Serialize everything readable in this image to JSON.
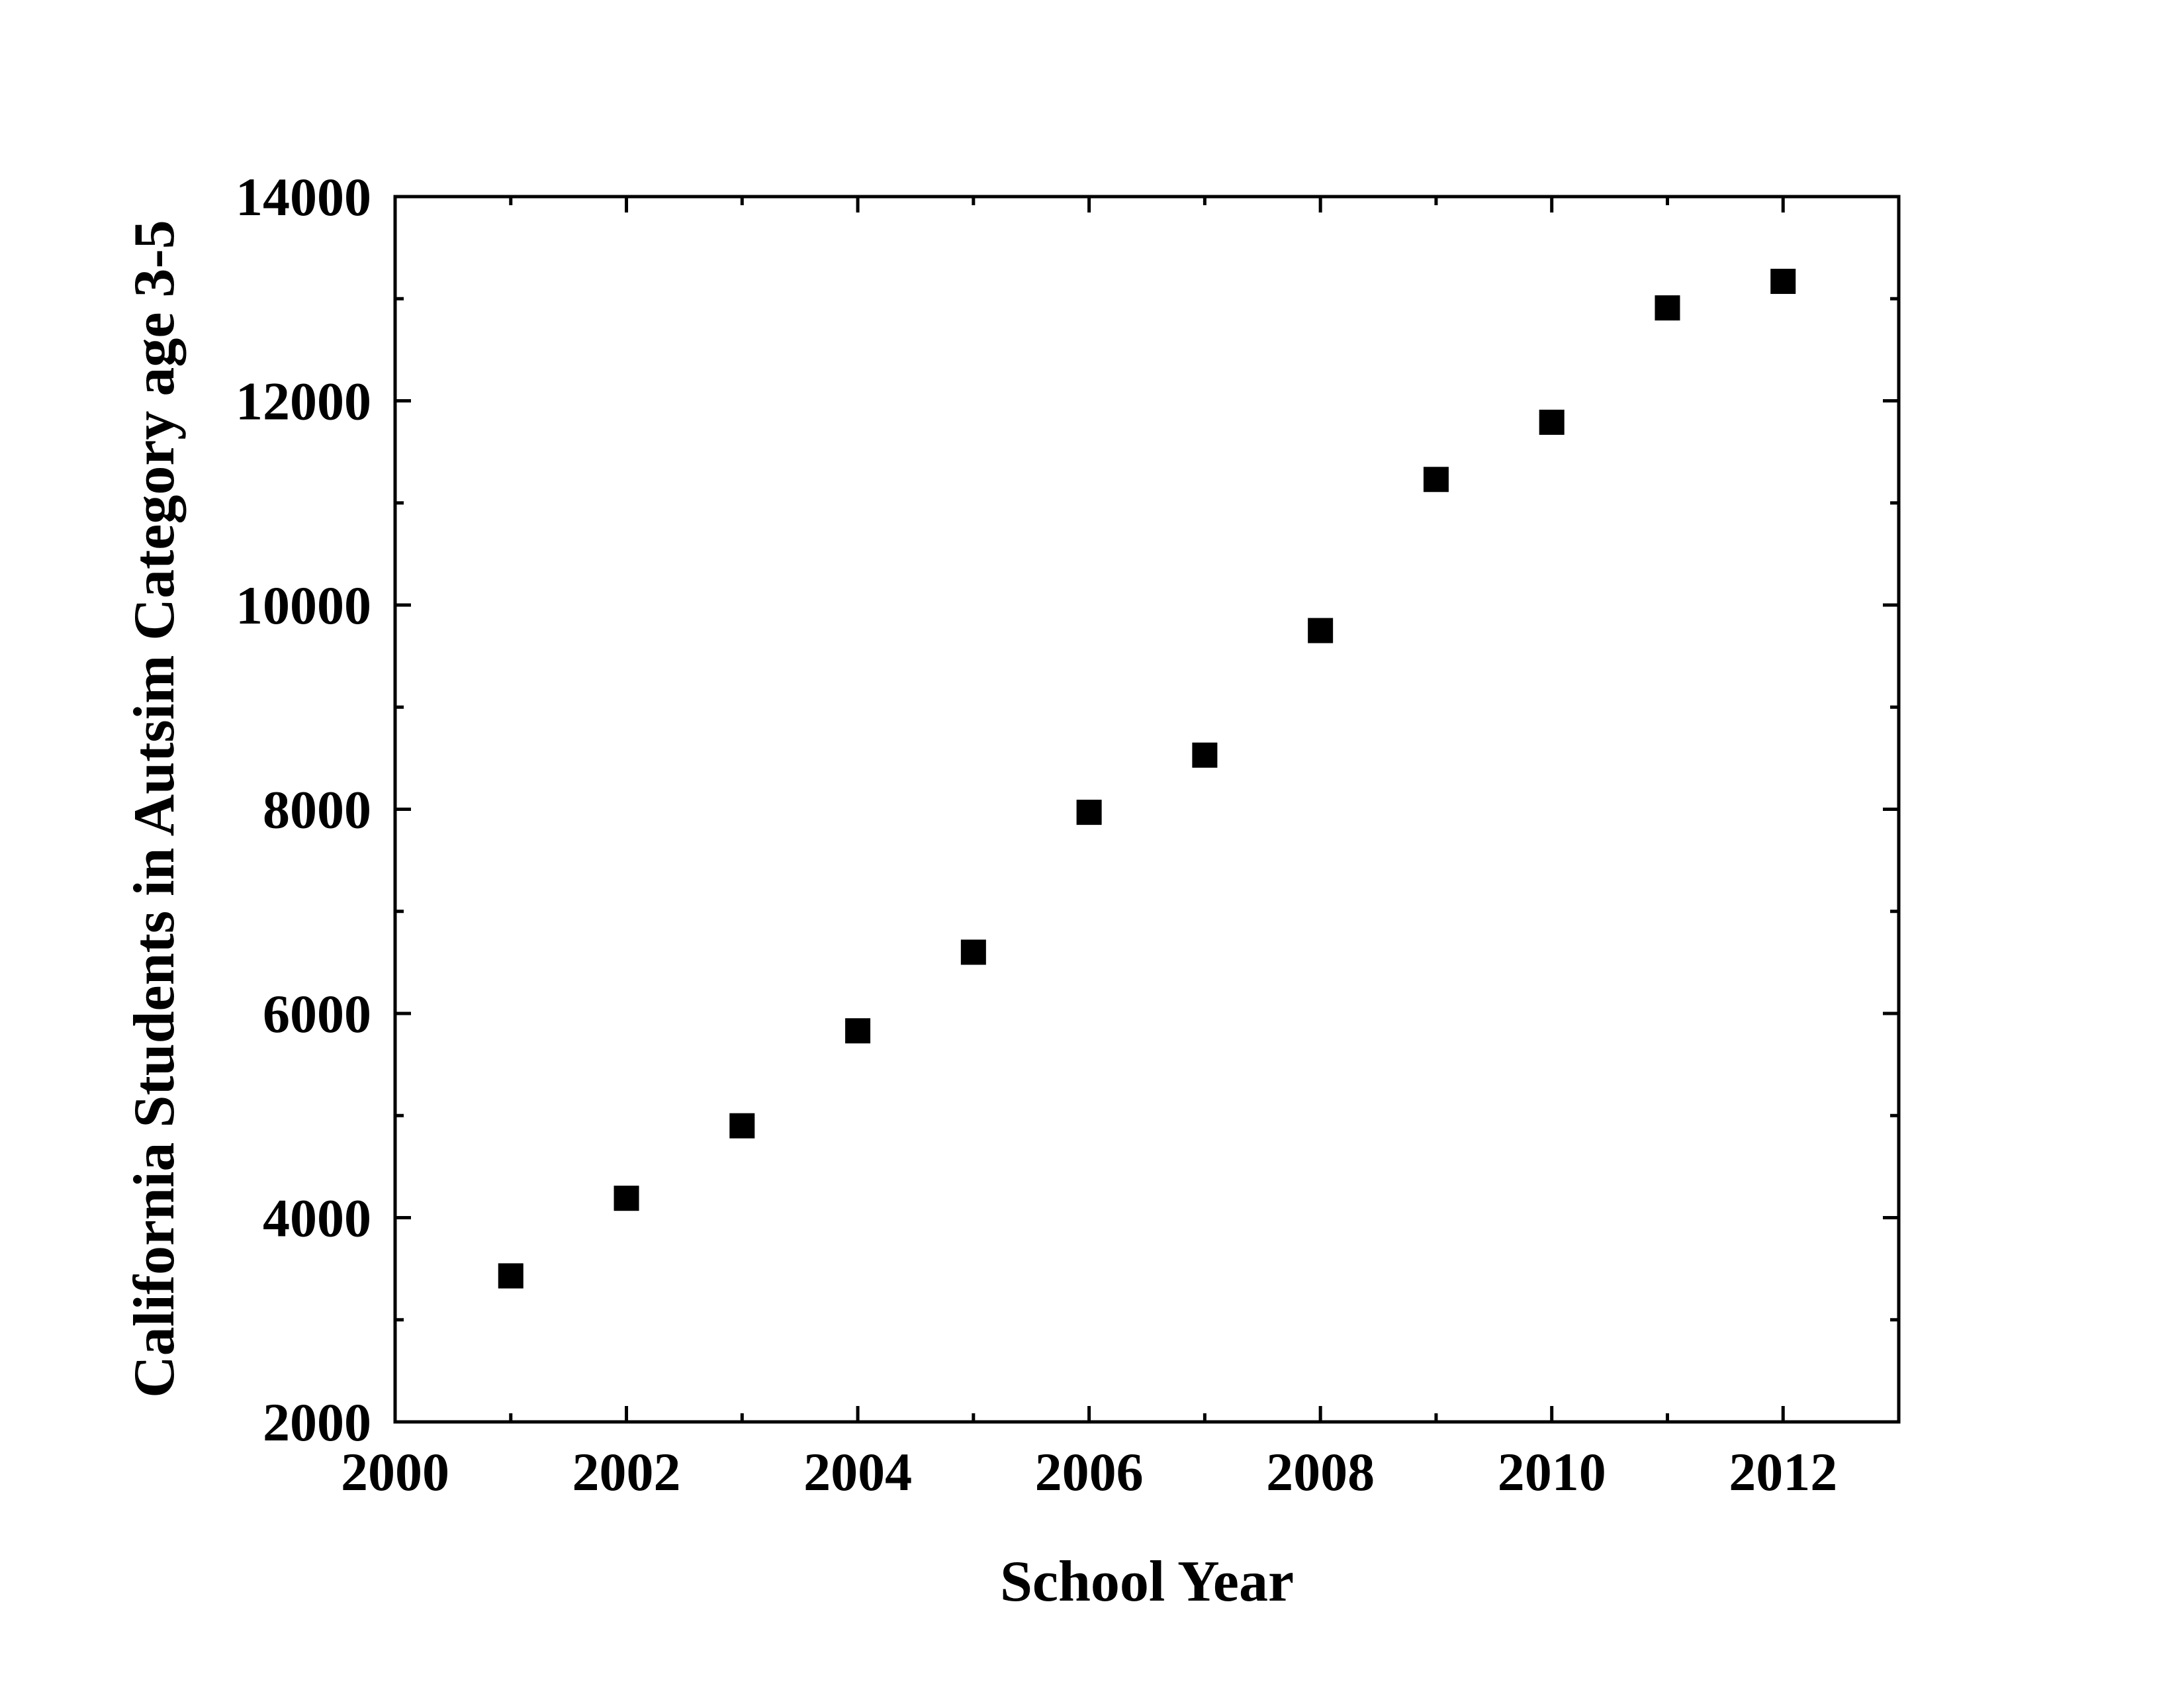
{
  "chart_data": {
    "type": "scatter",
    "title": "",
    "xlabel": "School Year",
    "ylabel": "California Students in Autsim Category age 3-5",
    "xlim": [
      2000,
      2013
    ],
    "ylim": [
      2000,
      14000
    ],
    "x_ticks": [
      "2000",
      "2002",
      "2004",
      "2006",
      "2008",
      "2010",
      "2012"
    ],
    "y_ticks": [
      "2000",
      "4000",
      "6000",
      "8000",
      "10000",
      "12000",
      "14000"
    ],
    "grid": false,
    "legend": "none",
    "marker": "square",
    "marker_color": "#000000",
    "series": [
      {
        "x": [
          2001,
          2002,
          2003,
          2004,
          2005,
          2006,
          2007,
          2008,
          2009,
          2010,
          2011,
          2012
        ],
        "y": [
          3430,
          4190,
          4900,
          5830,
          6600,
          7970,
          8530,
          9750,
          11230,
          11790,
          12910,
          13170
        ]
      }
    ]
  }
}
